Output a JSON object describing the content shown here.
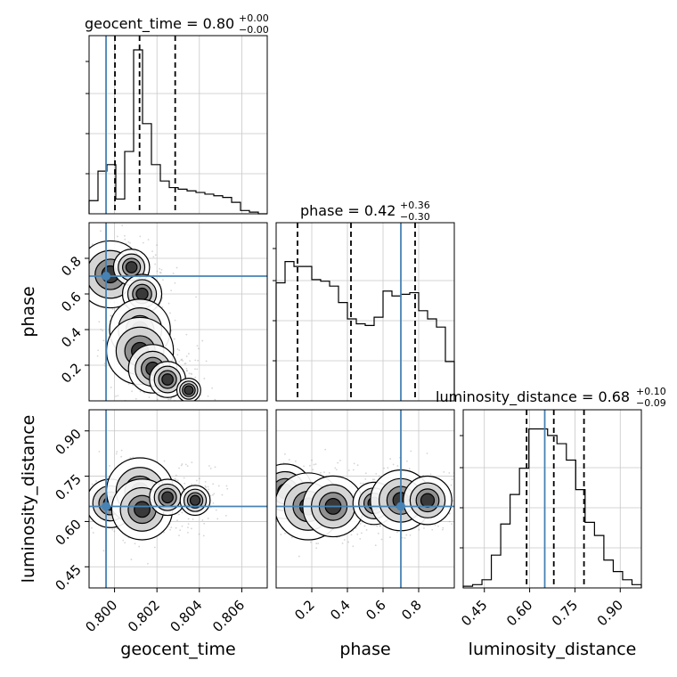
{
  "chart_data": {
    "type": "corner",
    "parameters": [
      {
        "name": "geocent_time",
        "title_main": "geocent_time = 0.80",
        "title_sup": "+0.00",
        "title_sub": "−0.00",
        "axis_label": "geocent_time",
        "range": [
          0.7988,
          0.8072
        ],
        "ticks": [
          0.8,
          0.802,
          0.804,
          0.806
        ],
        "tick_labels": [
          "0.800",
          "0.802",
          "0.804",
          "0.806"
        ],
        "truth": 0.7996,
        "quantiles": [
          0.80002,
          0.80118,
          0.80286
        ],
        "hist": [
          0.08,
          0.26,
          0.3,
          0.09,
          0.38,
          1.0,
          0.55,
          0.3,
          0.2,
          0.16,
          0.15,
          0.14,
          0.13,
          0.12,
          0.11,
          0.1,
          0.07,
          0.02,
          0.01,
          0.0
        ]
      },
      {
        "name": "phase",
        "title_main": "phase = 0.42",
        "title_sup": "+0.36",
        "title_sub": "−0.30",
        "axis_label": "phase",
        "range": [
          0.0,
          1.0
        ],
        "ticks": [
          0.2,
          0.4,
          0.6,
          0.8
        ],
        "tick_labels": [
          "0.2",
          "0.4",
          "0.6",
          "0.8"
        ],
        "truth": 0.7,
        "quantiles": [
          0.12,
          0.42,
          0.78
        ],
        "hist": [
          0.72,
          0.85,
          0.82,
          0.82,
          0.74,
          0.73,
          0.7,
          0.6,
          0.5,
          0.47,
          0.46,
          0.51,
          0.67,
          0.64,
          0.65,
          0.66,
          0.55,
          0.5,
          0.45,
          0.24
        ]
      },
      {
        "name": "luminosity_distance",
        "title_main": "luminosity_distance = 0.68",
        "title_sup": "+0.10",
        "title_sub": "−0.09",
        "axis_label": "luminosity_distance",
        "range": [
          0.38,
          0.97
        ],
        "ticks": [
          0.45,
          0.6,
          0.75,
          0.9
        ],
        "tick_labels": [
          "0.45",
          "0.60",
          "0.75",
          "0.90"
        ],
        "truth": 0.65,
        "quantiles": [
          0.59,
          0.68,
          0.78
        ],
        "hist": [
          0.01,
          0.02,
          0.05,
          0.2,
          0.39,
          0.57,
          0.73,
          0.97,
          0.97,
          0.93,
          0.88,
          0.78,
          0.6,
          0.4,
          0.32,
          0.17,
          0.1,
          0.05,
          0.02
        ]
      }
    ],
    "truth_color": "#4682b4",
    "grid": true,
    "pairs": [
      {
        "x_param": "geocent_time",
        "y_param": "phase",
        "density": [
          {
            "x": 0.7998,
            "y": 0.71,
            "weight": 1.0
          },
          {
            "x": 0.8008,
            "y": 0.75,
            "weight": 0.5
          },
          {
            "x": 0.8013,
            "y": 0.6,
            "weight": 0.55
          },
          {
            "x": 0.8012,
            "y": 0.4,
            "weight": 0.9
          },
          {
            "x": 0.8012,
            "y": 0.28,
            "weight": 1.0
          },
          {
            "x": 0.8018,
            "y": 0.18,
            "weight": 0.7
          },
          {
            "x": 0.8025,
            "y": 0.12,
            "weight": 0.5
          },
          {
            "x": 0.8035,
            "y": 0.06,
            "weight": 0.3
          }
        ]
      },
      {
        "x_param": "geocent_time",
        "y_param": "luminosity_distance",
        "density": [
          {
            "x": 0.7998,
            "y": 0.66,
            "weight": 0.7
          },
          {
            "x": 0.8012,
            "y": 0.7,
            "weight": 1.0
          },
          {
            "x": 0.8013,
            "y": 0.64,
            "weight": 0.9
          },
          {
            "x": 0.8025,
            "y": 0.68,
            "weight": 0.5
          },
          {
            "x": 0.8038,
            "y": 0.67,
            "weight": 0.4
          }
        ]
      },
      {
        "x_param": "phase",
        "y_param": "luminosity_distance",
        "density": [
          {
            "x": 0.05,
            "y": 0.7,
            "weight": 0.8
          },
          {
            "x": 0.18,
            "y": 0.65,
            "weight": 1.0
          },
          {
            "x": 0.32,
            "y": 0.65,
            "weight": 0.9
          },
          {
            "x": 0.55,
            "y": 0.66,
            "weight": 0.6
          },
          {
            "x": 0.7,
            "y": 0.67,
            "weight": 0.9
          },
          {
            "x": 0.85,
            "y": 0.67,
            "weight": 0.7
          }
        ]
      }
    ]
  }
}
